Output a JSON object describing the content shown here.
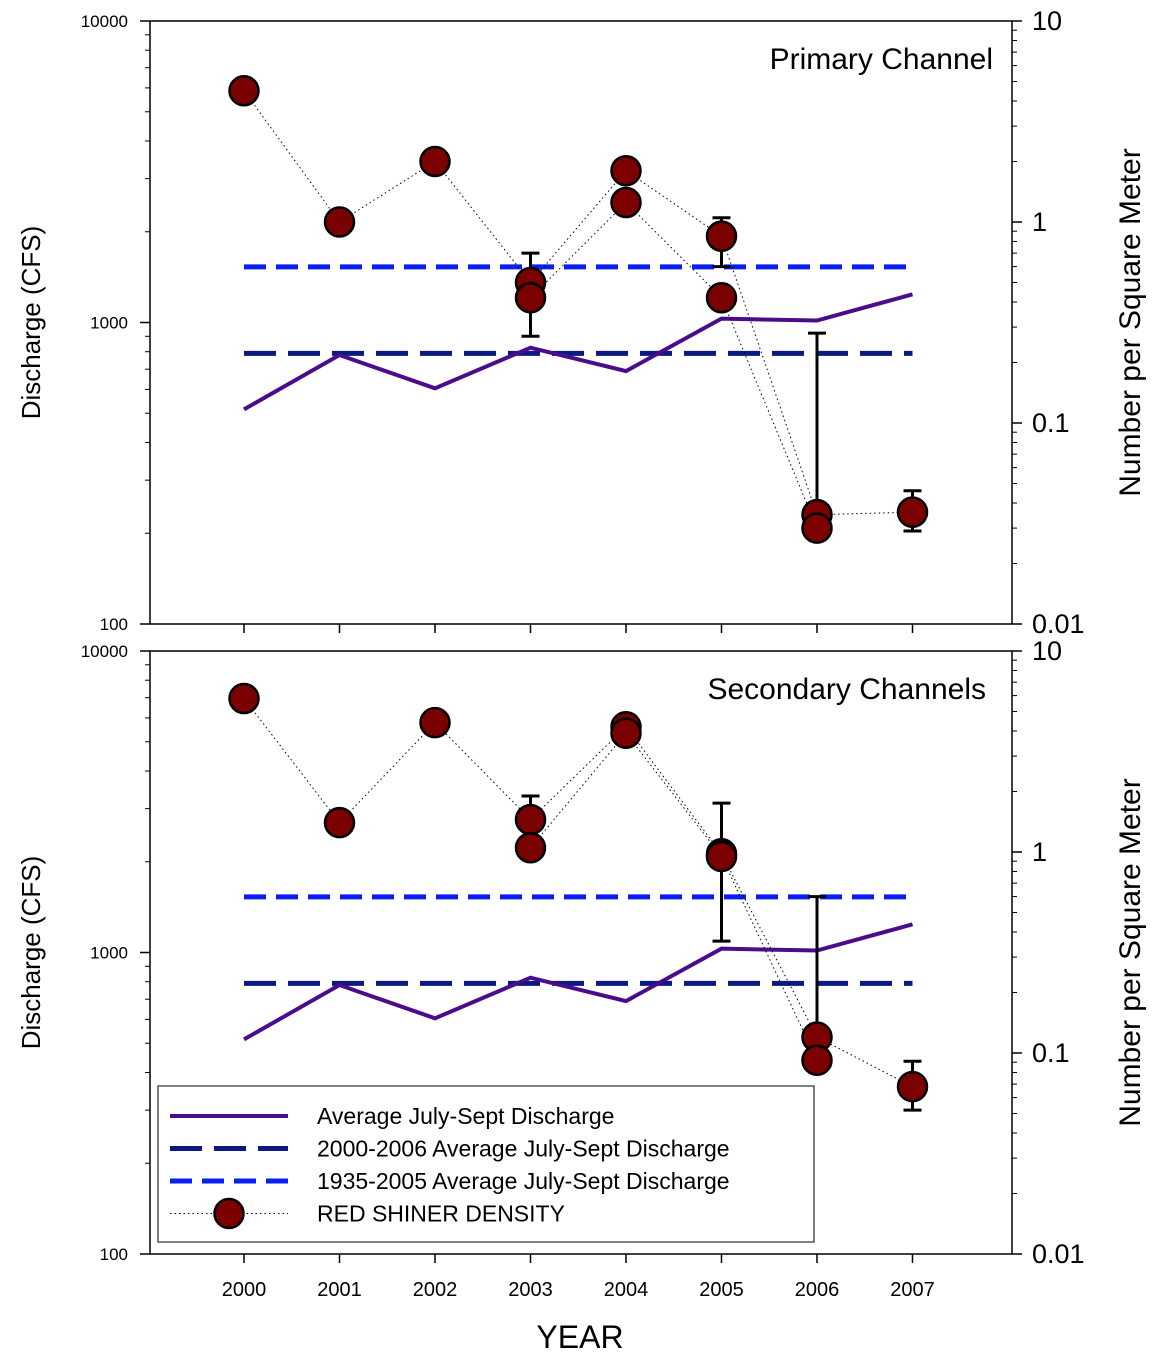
{
  "chart_data": {
    "type": "line",
    "xlabel": "YEAR",
    "x": [
      2000,
      2001,
      2002,
      2003,
      2004,
      2005,
      2006,
      2007
    ],
    "x_tick_labels": [
      "2000",
      "2001",
      "2002",
      "2003",
      "2004",
      "2005",
      "2006",
      "2007"
    ],
    "left_ylabel": "Discharge (CFS)",
    "right_ylabel": "Number per Square Meter",
    "left_yscale": "log",
    "right_yscale": "log",
    "left_ylim": [
      100,
      10000
    ],
    "right_ylim": [
      0.01,
      10
    ],
    "left_tick_labels": [
      "100",
      "1000",
      "10000"
    ],
    "right_tick_labels": [
      "0.01",
      "0.1",
      "1",
      "10"
    ],
    "grid": false,
    "legend_position": "bottom-left (lower panel)",
    "legend": [
      {
        "label": "Average July-Sept Discharge",
        "style": "solid",
        "color": "#4B0C8C"
      },
      {
        "label": "2000-2006 Average July-Sept Discharge",
        "style": "long-dash",
        "color": "#0A1A80"
      },
      {
        "label": "1935-2005 Average July-Sept Discharge",
        "style": "dash",
        "color": "#0A1EF0"
      },
      {
        "label": "RED SHINER DENSITY",
        "style": "dotted-with-markers",
        "color": "#7B0000"
      }
    ],
    "panels": [
      {
        "title": "Primary Channel",
        "discharge": [
          515,
          780,
          605,
          825,
          690,
          1030,
          1015,
          1240
        ],
        "avg_2000_2006": 790,
        "avg_1935_2005": 1530,
        "density_series": [
          {
            "x": [
              2000,
              2001,
              2002,
              2003,
              2004,
              2005,
              2006,
              2007
            ],
            "values": [
              4.5,
              1.0,
              2.0,
              0.5,
              1.8,
              0.85,
              0.035,
              0.036
            ]
          },
          {
            "x": [
              2003,
              2004,
              2005,
              2006
            ],
            "values": [
              0.42,
              1.25,
              0.42,
              0.03
            ]
          }
        ],
        "error_bars": [
          {
            "x": 2003,
            "low": 0.27,
            "high": 0.7
          },
          {
            "x": 2005,
            "low": 0.6,
            "high": 1.05
          },
          {
            "x": 2006,
            "low": 0.035,
            "high": 0.28
          },
          {
            "x": 2007,
            "low": 0.029,
            "high": 0.046
          }
        ]
      },
      {
        "title": "Secondary Channels",
        "discharge": [
          515,
          780,
          605,
          825,
          690,
          1030,
          1015,
          1240
        ],
        "avg_2000_2006": 790,
        "avg_1935_2005": 1530,
        "density_series": [
          {
            "x": [
              2000,
              2001,
              2002,
              2003,
              2004,
              2005,
              2006,
              2007
            ],
            "values": [
              5.8,
              1.4,
              4.4,
              1.45,
              4.2,
              0.98,
              0.12,
              0.068
            ]
          },
          {
            "x": [
              2003,
              2004,
              2005,
              2006
            ],
            "values": [
              1.05,
              3.9,
              0.95,
              0.092
            ]
          }
        ],
        "error_bars": [
          {
            "x": 2003,
            "low": 1.45,
            "high": 1.9
          },
          {
            "x": 2005,
            "low": 0.36,
            "high": 1.75
          },
          {
            "x": 2006,
            "low": 0.12,
            "high": 0.6
          },
          {
            "x": 2007,
            "low": 0.052,
            "high": 0.091
          }
        ]
      }
    ]
  }
}
